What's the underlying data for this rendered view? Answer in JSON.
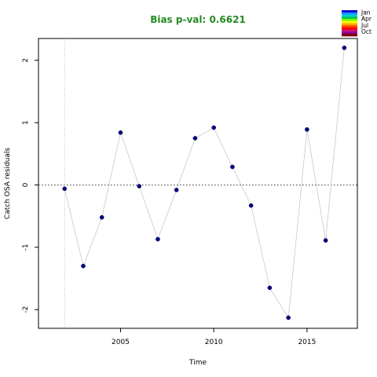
{
  "chart_data": {
    "type": "scatter",
    "title": "Bias p-val: 0.6621",
    "title_color": "#228B22",
    "xlabel": "Time",
    "ylabel": "Catch OSA residuals",
    "xlim": [
      2000.6,
      2017.7
    ],
    "ylim": [
      -2.3,
      2.35
    ],
    "x_ticks": [
      2005,
      2010,
      2015
    ],
    "y_ticks": [
      -2,
      -1,
      0,
      1,
      2
    ],
    "reference_line_y": 0,
    "vertical_reference_x": 2002,
    "point_color": "#00008B",
    "line_color": "#c8c8c8",
    "x": [
      2002,
      2003,
      2004,
      2005,
      2006,
      2007,
      2008,
      2009,
      2010,
      2011,
      2012,
      2013,
      2014,
      2015,
      2016,
      2017
    ],
    "y": [
      -0.06,
      -1.3,
      -0.52,
      0.84,
      -0.02,
      -0.87,
      -0.08,
      0.75,
      0.92,
      0.29,
      -0.33,
      -1.65,
      -2.13,
      0.89,
      -0.89,
      2.2
    ],
    "legend": {
      "position": "top-right",
      "labels": [
        "Jan",
        "Apr",
        "Jul",
        "Oct"
      ],
      "colors": [
        "#0000CD",
        "#1E90FF",
        "#00CED1",
        "#00C853",
        "#7CFC00",
        "#FFFF00",
        "#FFA500",
        "#FF4500",
        "#FF0000",
        "#C71585",
        "#8B008B",
        "#800000"
      ]
    }
  }
}
